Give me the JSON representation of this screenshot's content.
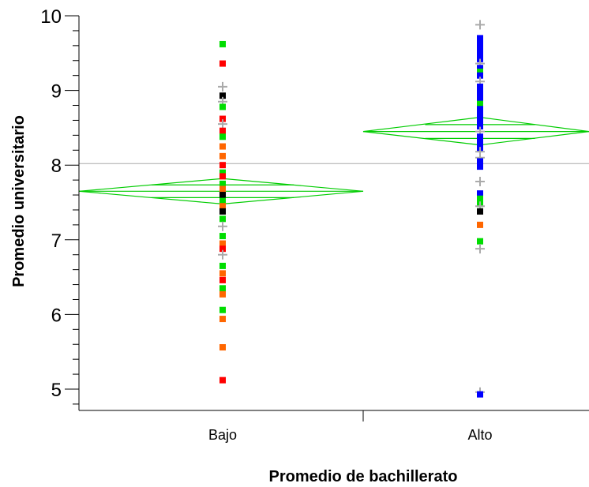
{
  "chart_data": {
    "type": "scatter",
    "title": "",
    "xlabel": "Promedio de bachillerato",
    "ylabel": "Promedio universitario",
    "categories": [
      "Bajo",
      "Alto"
    ],
    "ylim": [
      4.7,
      10
    ],
    "yticks": [
      5,
      6,
      7,
      8,
      9,
      10
    ],
    "grand_mean": 8.02,
    "groups": [
      {
        "category": "Bajo",
        "mean": 7.65,
        "ci": [
          7.48,
          7.82
        ],
        "diamond_extent": [
          -0.5,
          1.5
        ],
        "points": [
          {
            "y": 9.62,
            "color": "#00dd00"
          },
          {
            "y": 9.36,
            "color": "#ff0000"
          },
          {
            "y": 9.05,
            "color": "#aaaaaa",
            "marker": "plus"
          },
          {
            "y": 8.93,
            "color": "#000000"
          },
          {
            "y": 8.85,
            "color": "#aaaaaa",
            "marker": "plus"
          },
          {
            "y": 8.78,
            "color": "#00dd00"
          },
          {
            "y": 8.62,
            "color": "#ff0000"
          },
          {
            "y": 8.55,
            "color": "#aaaaaa",
            "marker": "plus"
          },
          {
            "y": 8.46,
            "color": "#ff0000"
          },
          {
            "y": 8.38,
            "color": "#00dd00"
          },
          {
            "y": 8.25,
            "color": "#ff6600"
          },
          {
            "y": 8.12,
            "color": "#ff6600"
          },
          {
            "y": 8.0,
            "color": "#ff0000"
          },
          {
            "y": 7.9,
            "color": "#00dd00"
          },
          {
            "y": 7.85,
            "color": "#ff0000"
          },
          {
            "y": 7.75,
            "color": "#00dd00"
          },
          {
            "y": 7.68,
            "color": "#ff6600"
          },
          {
            "y": 7.6,
            "color": "#000000"
          },
          {
            "y": 7.52,
            "color": "#00dd00"
          },
          {
            "y": 7.45,
            "color": "#ff6600"
          },
          {
            "y": 7.38,
            "color": "#000000"
          },
          {
            "y": 7.28,
            "color": "#00dd00"
          },
          {
            "y": 7.18,
            "color": "#aaaaaa",
            "marker": "plus"
          },
          {
            "y": 7.05,
            "color": "#00dd00"
          },
          {
            "y": 6.95,
            "color": "#ff6600"
          },
          {
            "y": 6.88,
            "color": "#ff0000"
          },
          {
            "y": 6.8,
            "color": "#aaaaaa",
            "marker": "plus"
          },
          {
            "y": 6.65,
            "color": "#00dd00"
          },
          {
            "y": 6.55,
            "color": "#ff6600"
          },
          {
            "y": 6.46,
            "color": "#ff0000"
          },
          {
            "y": 6.35,
            "color": "#00dd00"
          },
          {
            "y": 6.27,
            "color": "#ff6600"
          },
          {
            "y": 6.06,
            "color": "#00dd00"
          },
          {
            "y": 5.94,
            "color": "#ff6600"
          },
          {
            "y": 5.56,
            "color": "#ff6600"
          },
          {
            "y": 5.12,
            "color": "#ff0000"
          }
        ]
      },
      {
        "category": "Alto",
        "mean": 8.45,
        "ci": [
          8.27,
          8.64
        ],
        "diamond_extent": [
          0.5,
          1.5
        ],
        "points": [
          {
            "y": 9.88,
            "color": "#aaaaaa",
            "marker": "plus"
          },
          {
            "y": 9.7,
            "color": "#0000ff"
          },
          {
            "y": 9.62,
            "color": "#0000ff"
          },
          {
            "y": 9.55,
            "color": "#0000ff"
          },
          {
            "y": 9.48,
            "color": "#0000ff"
          },
          {
            "y": 9.42,
            "color": "#0000ff"
          },
          {
            "y": 9.36,
            "color": "#aaaaaa",
            "marker": "plus"
          },
          {
            "y": 9.3,
            "color": "#0000ff"
          },
          {
            "y": 9.25,
            "color": "#00dd00"
          },
          {
            "y": 9.2,
            "color": "#0000ff"
          },
          {
            "y": 9.12,
            "color": "#aaaaaa",
            "marker": "plus"
          },
          {
            "y": 9.05,
            "color": "#0000ff"
          },
          {
            "y": 8.97,
            "color": "#0000ff"
          },
          {
            "y": 8.9,
            "color": "#0000ff"
          },
          {
            "y": 8.82,
            "color": "#00dd00"
          },
          {
            "y": 8.75,
            "color": "#0000ff"
          },
          {
            "y": 8.68,
            "color": "#0000ff"
          },
          {
            "y": 8.6,
            "color": "#0000ff"
          },
          {
            "y": 8.52,
            "color": "#0000ff"
          },
          {
            "y": 8.45,
            "color": "#aaaaaa",
            "marker": "plus"
          },
          {
            "y": 8.38,
            "color": "#0000ff"
          },
          {
            "y": 8.33,
            "color": "#0000ff"
          },
          {
            "y": 8.28,
            "color": "#0000ff"
          },
          {
            "y": 8.23,
            "color": "#0000ff"
          },
          {
            "y": 8.18,
            "color": "#aaaaaa",
            "marker": "plus"
          },
          {
            "y": 8.1,
            "color": "#aaaaaa",
            "marker": "plus"
          },
          {
            "y": 8.05,
            "color": "#0000ff"
          },
          {
            "y": 7.98,
            "color": "#0000ff"
          },
          {
            "y": 7.78,
            "color": "#aaaaaa",
            "marker": "plus"
          },
          {
            "y": 7.62,
            "color": "#0000ff"
          },
          {
            "y": 7.55,
            "color": "#00dd00"
          },
          {
            "y": 7.48,
            "color": "#00dd00"
          },
          {
            "y": 7.45,
            "color": "#aaaaaa",
            "marker": "plus"
          },
          {
            "y": 7.38,
            "color": "#000000"
          },
          {
            "y": 7.2,
            "color": "#ff6600"
          },
          {
            "y": 6.98,
            "color": "#00dd00"
          },
          {
            "y": 6.88,
            "color": "#aaaaaa",
            "marker": "plus"
          },
          {
            "y": 4.96,
            "color": "#aaaaaa",
            "marker": "plus"
          },
          {
            "y": 4.93,
            "color": "#0000ff"
          }
        ]
      }
    ],
    "colors": {
      "diamond": "#00cc00",
      "grand_mean_line": "#aaaaaa",
      "axis": "#000000"
    }
  }
}
